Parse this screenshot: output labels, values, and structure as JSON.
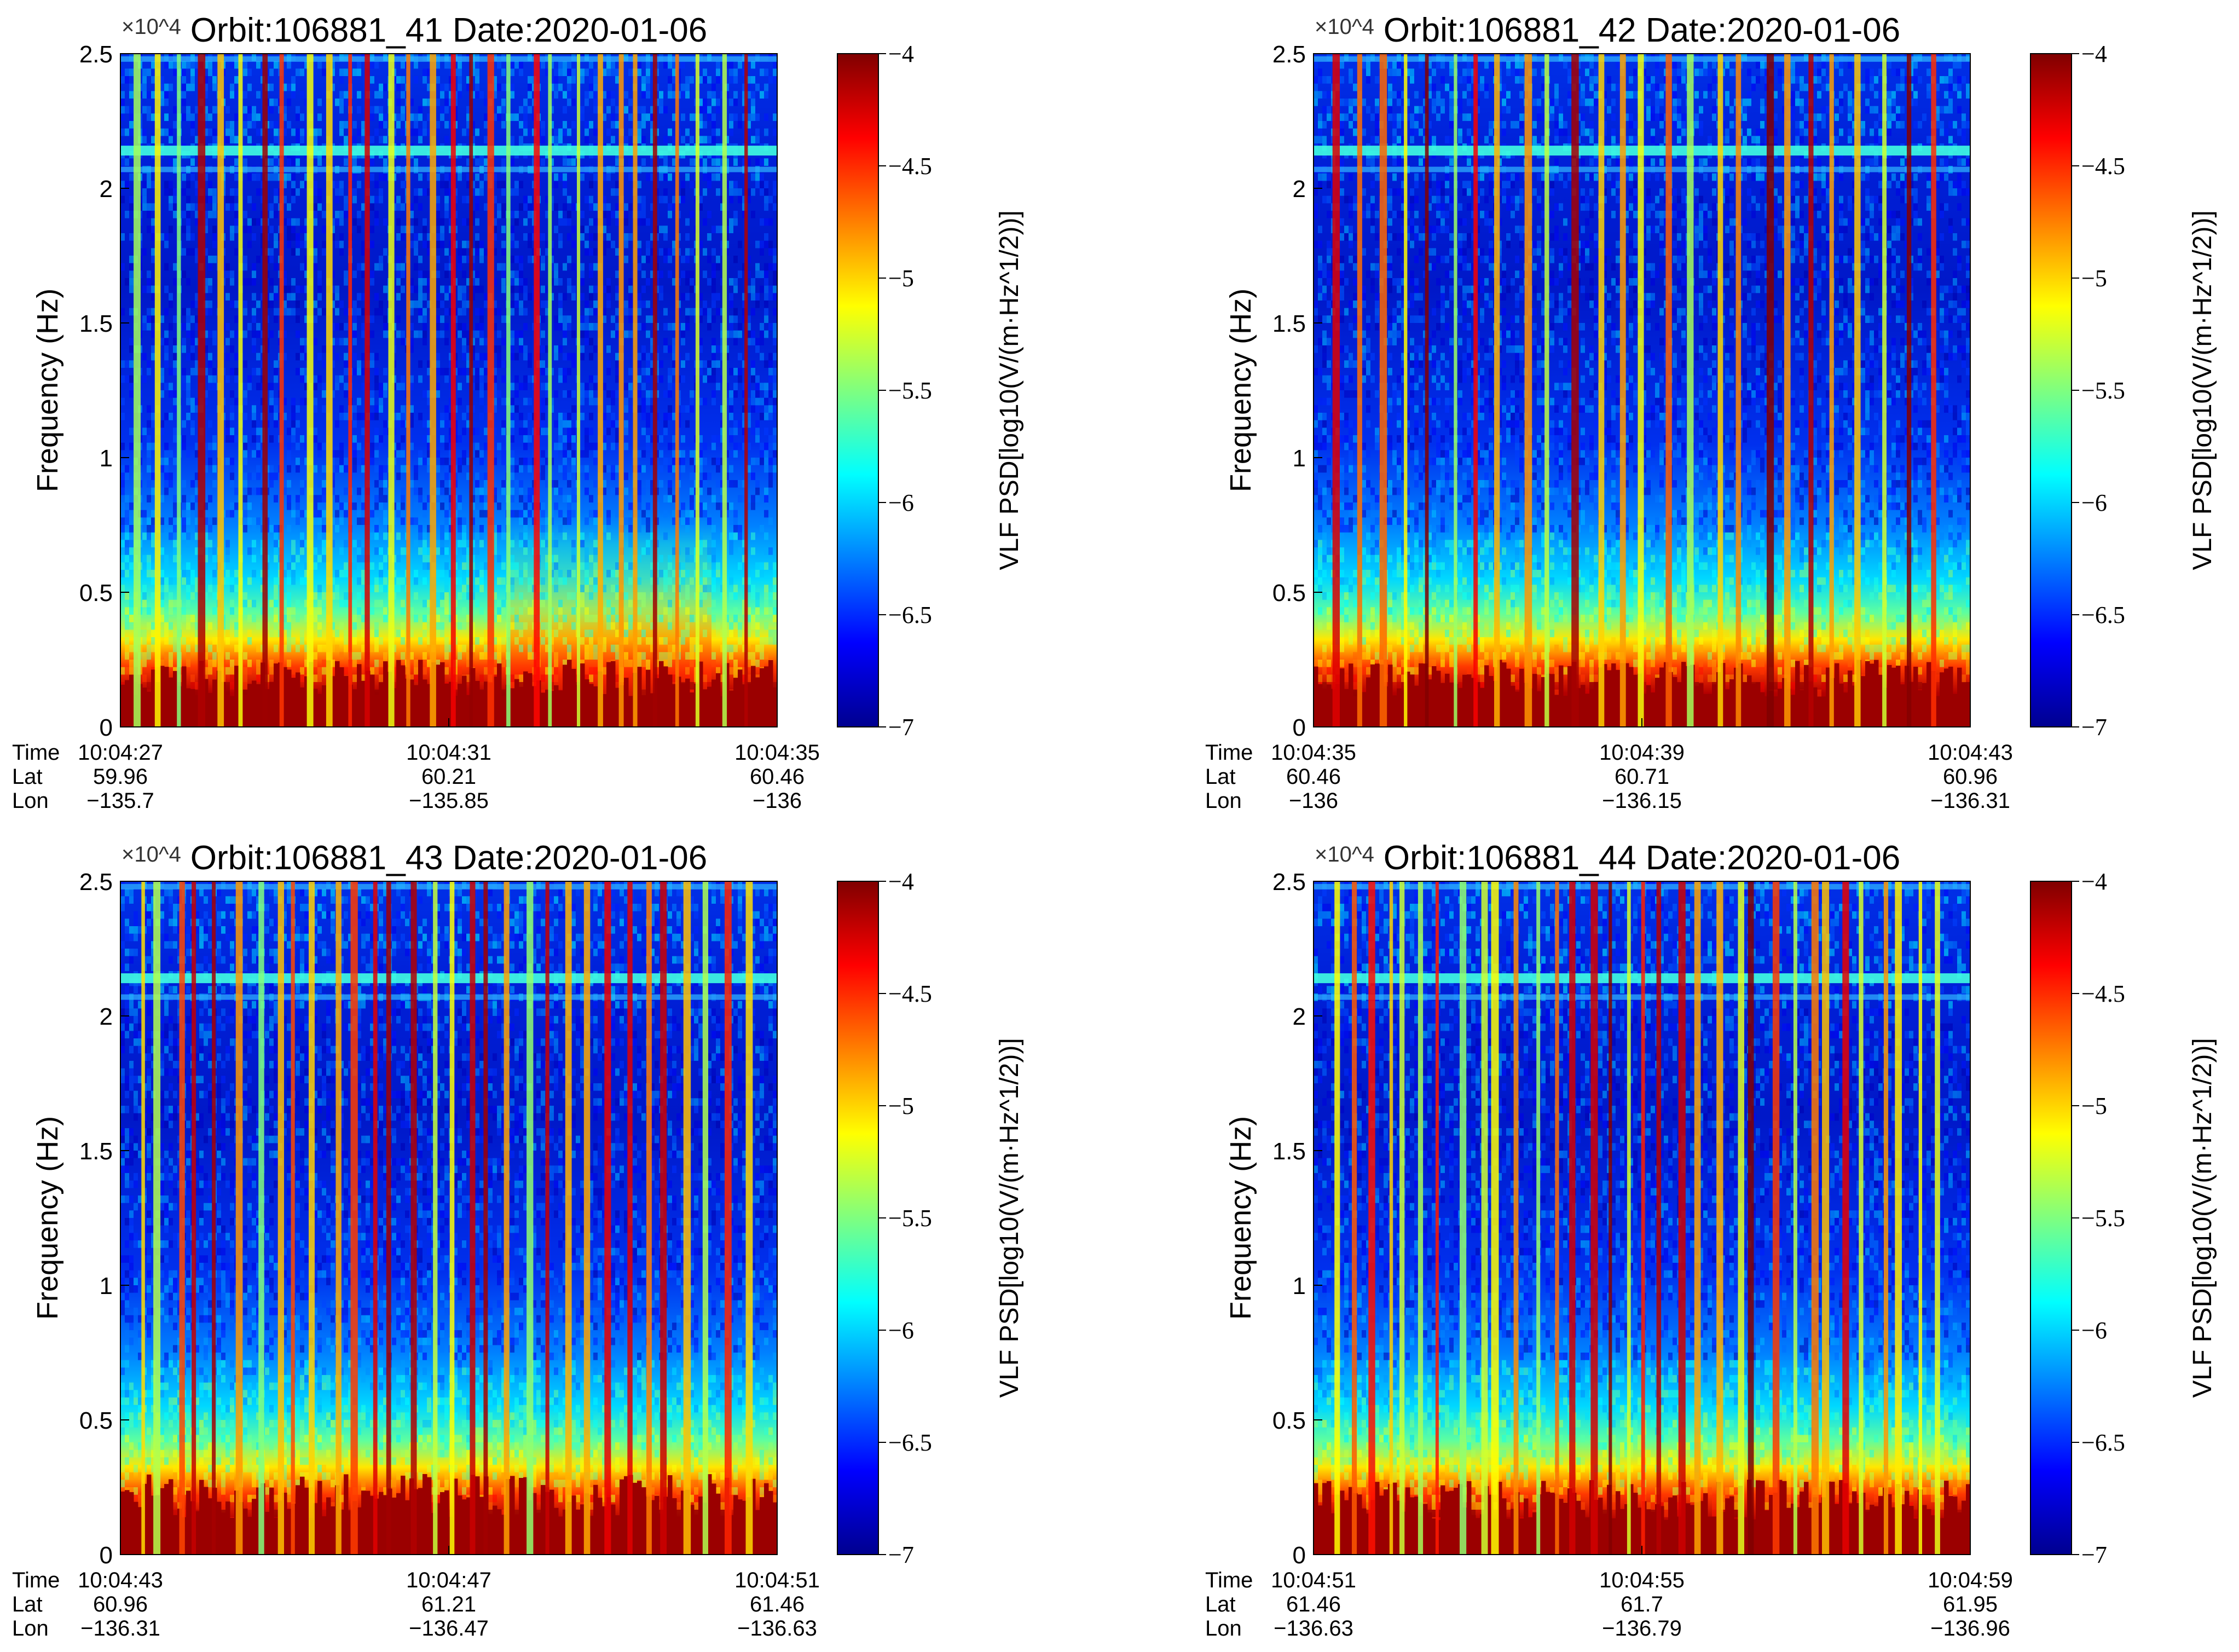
{
  "chart_data": [
    {
      "type": "heatmap",
      "title": "Orbit:106881_41  Date:2020-01-06",
      "ylabel": "Frequency (Hz)",
      "y_multiplier": "×10^4",
      "yticks": [
        "0",
        "0.5",
        "1",
        "1.5",
        "2",
        "2.5"
      ],
      "ylim": [
        0,
        25000
      ],
      "colorbar_label": "VLF PSD[log10(V/(m·Hz^1/2))]",
      "colorbar_ticks": [
        "−4",
        "−4.5",
        "−5",
        "−5.5",
        "−6",
        "−6.5",
        "−7"
      ],
      "clim": [
        -7,
        -4
      ],
      "colormap": "jet",
      "x_rows": {
        "labels": [
          "Time",
          "Lat",
          "Lon"
        ],
        "time": [
          "10:04:27",
          "10:04:31",
          "10:04:35"
        ],
        "lat": [
          "59.96",
          "60.21",
          "60.46"
        ],
        "lon": [
          "−135.7",
          "−135.85",
          "−136"
        ]
      },
      "features": {
        "bright_bands_hz": [
          21400,
          20700,
          24800
        ],
        "low_freq_cutoff_hz": 2500,
        "hot_region_hz": 8000
      }
    },
    {
      "type": "heatmap",
      "title": "Orbit:106881_42  Date:2020-01-06",
      "ylabel": "Frequency (Hz)",
      "y_multiplier": "×10^4",
      "yticks": [
        "0",
        "0.5",
        "1",
        "1.5",
        "2",
        "2.5"
      ],
      "ylim": [
        0,
        25000
      ],
      "colorbar_label": "VLF PSD[log10(V/(m·Hz^1/2))]",
      "colorbar_ticks": [
        "−4",
        "−4.5",
        "−5",
        "−5.5",
        "−6",
        "−6.5",
        "−7"
      ],
      "clim": [
        -7,
        -4
      ],
      "colormap": "jet",
      "x_rows": {
        "labels": [
          "Time",
          "Lat",
          "Lon"
        ],
        "time": [
          "10:04:35",
          "10:04:39",
          "10:04:43"
        ],
        "lat": [
          "60.46",
          "60.71",
          "60.96"
        ],
        "lon": [
          "−136",
          "−136.15",
          "−136.31"
        ]
      },
      "features": {
        "bright_bands_hz": [
          21400,
          20700,
          24800
        ],
        "low_freq_cutoff_hz": 2500,
        "hot_region_hz": 0
      }
    },
    {
      "type": "heatmap",
      "title": "Orbit:106881_43  Date:2020-01-06",
      "ylabel": "Frequency (Hz)",
      "y_multiplier": "×10^4",
      "yticks": [
        "0",
        "0.5",
        "1",
        "1.5",
        "2",
        "2.5"
      ],
      "ylim": [
        0,
        25000
      ],
      "colorbar_label": "VLF PSD[log10(V/(m·Hz^1/2))]",
      "colorbar_ticks": [
        "−4",
        "−4.5",
        "−5",
        "−5.5",
        "−6",
        "−6.5",
        "−7"
      ],
      "clim": [
        -7,
        -4
      ],
      "colormap": "jet",
      "x_rows": {
        "labels": [
          "Time",
          "Lat",
          "Lon"
        ],
        "time": [
          "10:04:43",
          "10:04:47",
          "10:04:51"
        ],
        "lat": [
          "60.96",
          "61.21",
          "61.46"
        ],
        "lon": [
          "−136.31",
          "−136.47",
          "−136.63"
        ]
      },
      "features": {
        "bright_bands_hz": [
          21400,
          20700,
          24800
        ],
        "low_freq_cutoff_hz": 3000,
        "hot_region_hz": 0
      }
    },
    {
      "type": "heatmap",
      "title": "Orbit:106881_44  Date:2020-01-06",
      "ylabel": "Frequency (Hz)",
      "y_multiplier": "×10^4",
      "yticks": [
        "0",
        "0.5",
        "1",
        "1.5",
        "2",
        "2.5"
      ],
      "ylim": [
        0,
        25000
      ],
      "colorbar_label": "VLF PSD[log10(V/(m·Hz^1/2))]",
      "colorbar_ticks": [
        "−4",
        "−4.5",
        "−5",
        "−5.5",
        "−6",
        "−6.5",
        "−7"
      ],
      "clim": [
        -7,
        -4
      ],
      "colormap": "jet",
      "x_rows": {
        "labels": [
          "Time",
          "Lat",
          "Lon"
        ],
        "time": [
          "10:04:51",
          "10:04:55",
          "10:04:59"
        ],
        "lat": [
          "61.46",
          "61.7",
          "61.95"
        ],
        "lon": [
          "−136.63",
          "−136.79",
          "−136.96"
        ]
      },
      "features": {
        "bright_bands_hz": [
          21400,
          20700,
          24800
        ],
        "low_freq_cutoff_hz": 2800,
        "hot_region_hz": 0
      }
    }
  ]
}
